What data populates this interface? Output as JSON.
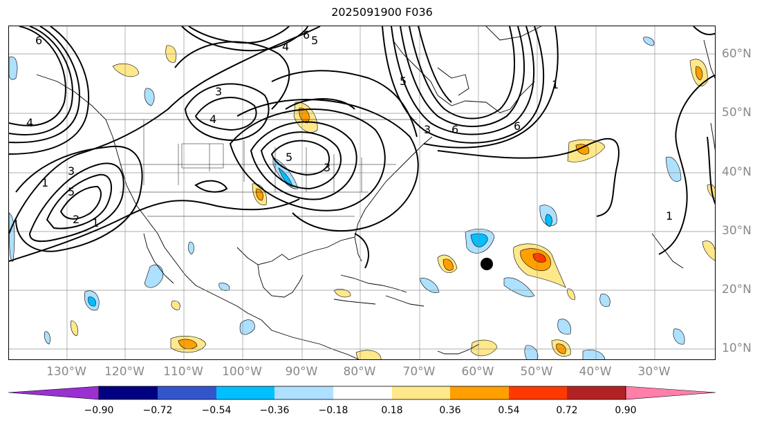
{
  "title": "2025091900 F036",
  "longitude_labels": [
    "130°W",
    "120°W",
    "110°W",
    "100°W",
    "90°W",
    "80°W",
    "70°W",
    "60°W",
    "50°W",
    "40°W",
    "30°W"
  ],
  "latitude_labels": [
    "60°N",
    "50°N",
    "40°N",
    "30°N",
    "20°N",
    "10°N"
  ],
  "colorbar": {
    "ticks": [
      "−0.90",
      "−0.72",
      "−0.54",
      "−0.36",
      "−0.18",
      "0.18",
      "0.36",
      "0.54",
      "0.72",
      "0.90"
    ],
    "colors": [
      "#9b30d0",
      "#000080",
      "#3355cc",
      "#00bfff",
      "#aee0ff",
      "#ffffff",
      "#ffe88a",
      "#ff9f00",
      "#ff3a00",
      "#b22222",
      "#ff7fa8"
    ]
  },
  "contour_labels": [
    "6",
    "6",
    "4",
    "5",
    "3",
    "1",
    "3",
    "5",
    "1",
    "2",
    "4",
    "3",
    "5",
    "4",
    "1",
    "6",
    "5",
    "3",
    "6",
    "1"
  ],
  "marker": "storm-center-dot"
}
